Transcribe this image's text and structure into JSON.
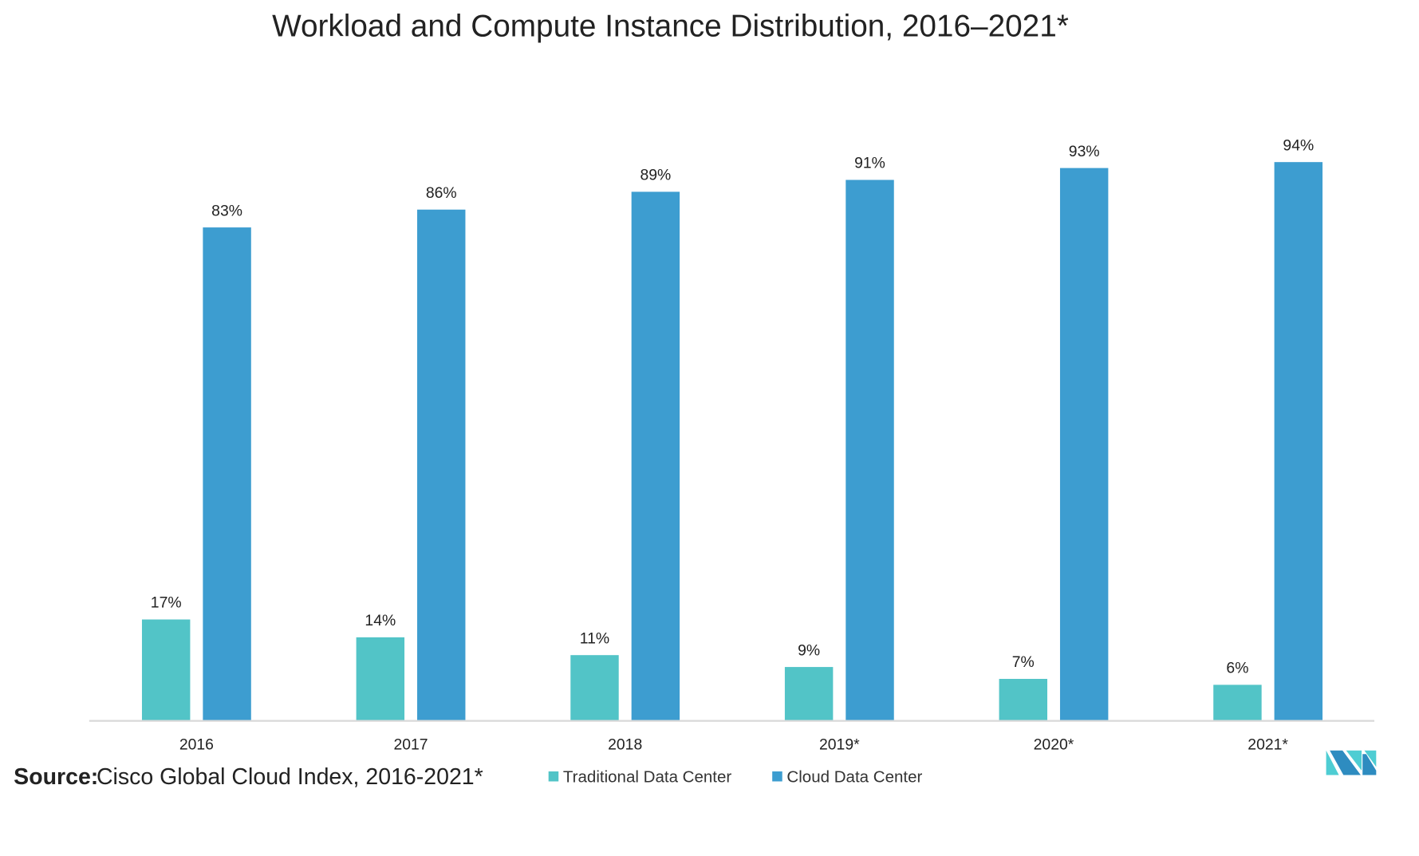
{
  "chart_data": {
    "type": "bar",
    "title": "Workload and Compute Instance Distribution, 2016–2021*",
    "categories": [
      "2016",
      "2017",
      "2018",
      "2019*",
      "2020*",
      "2021*"
    ],
    "series": [
      {
        "name": "Traditional Data Center",
        "color": "#52C4C7",
        "values": [
          17,
          14,
          11,
          9,
          7,
          6
        ],
        "labels": [
          "17%",
          "14%",
          "11%",
          "9%",
          "7%",
          "6%"
        ]
      },
      {
        "name": "Cloud Data Center",
        "color": "#3D9DD0",
        "values": [
          83,
          86,
          89,
          91,
          93,
          94
        ],
        "labels": [
          "83%",
          "86%",
          "89%",
          "91%",
          "93%",
          "94%"
        ]
      }
    ],
    "xlabel": "",
    "ylabel": "",
    "ylim": [
      0,
      100
    ],
    "grid": false,
    "legend_position": "bottom"
  },
  "source": {
    "label": "Source:",
    "text": "Cisco Global Cloud Index, 2016-2021*"
  },
  "colors": {
    "axis": "#D9D9D9",
    "logo_dark": "#2E8CC0",
    "logo_light": "#4ECDD3"
  }
}
